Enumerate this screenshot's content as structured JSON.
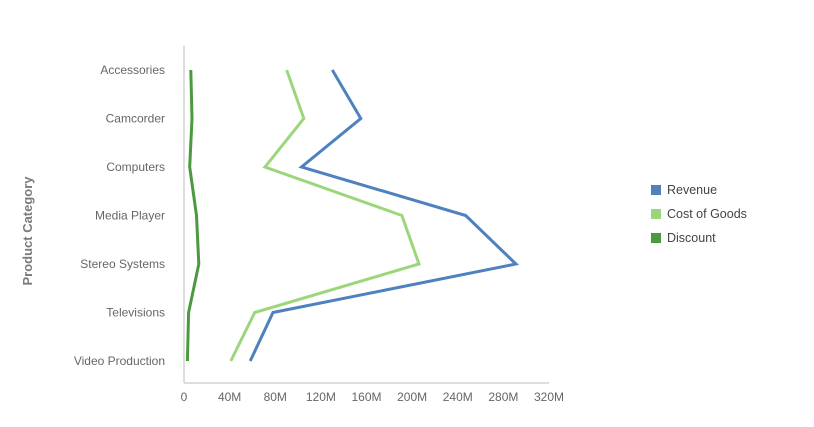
{
  "chart_data": {
    "type": "line",
    "orientation": "horizontal",
    "ylabel": "Product Category",
    "categories": [
      "Accessories",
      "Camcorder",
      "Computers",
      "Media Player",
      "Stereo Systems",
      "Televisions",
      "Video Production"
    ],
    "x_ticks": [
      "0",
      "40M",
      "80M",
      "120M",
      "160M",
      "200M",
      "240M",
      "280M",
      "320M"
    ],
    "xlim": [
      0,
      320000000
    ],
    "grid": false,
    "legend_position": "right",
    "series": [
      {
        "name": "Revenue",
        "color": "#4e81bd",
        "values": [
          130000000,
          155000000,
          103000000,
          247000000,
          291000000,
          78000000,
          58000000
        ]
      },
      {
        "name": "Cost of Goods",
        "color": "#9bd77a",
        "values": [
          90000000,
          105000000,
          71000000,
          191000000,
          206000000,
          62000000,
          41000000
        ]
      },
      {
        "name": "Discount",
        "color": "#4c9a3f",
        "values": [
          6000000,
          7000000,
          5000000,
          11000000,
          13000000,
          4000000,
          3000000
        ]
      }
    ]
  }
}
